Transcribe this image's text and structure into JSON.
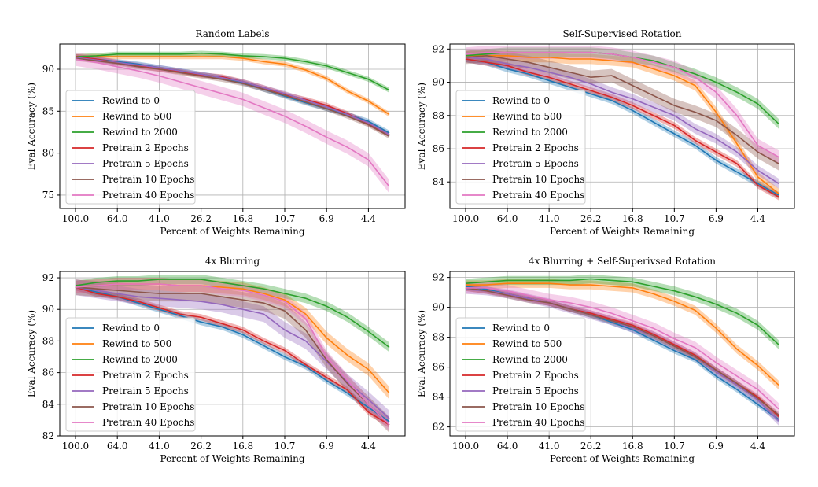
{
  "chart_data": [
    {
      "type": "line",
      "title": "Random Labels",
      "xlabel": "Percent of Weights Remaining",
      "ylabel": "Eval Accuracy (%)",
      "x_ticks": [
        "100.0",
        "64.0",
        "41.0",
        "26.2",
        "16.8",
        "10.7",
        "6.9",
        "4.4"
      ],
      "y_ticks": [
        75,
        80,
        85,
        90
      ],
      "ylim": [
        73.4,
        93.0
      ],
      "x": [
        100.0,
        80.0,
        64.0,
        51.2,
        41.0,
        32.8,
        26.2,
        21.0,
        16.8,
        13.4,
        10.7,
        8.6,
        6.9,
        5.5,
        4.4,
        3.5
      ],
      "legend_position": "lower-left",
      "grid": true,
      "series": [
        {
          "name": "Rewind to 0",
          "color": "#1f77b4",
          "band": 0.3,
          "values": [
            91.5,
            91.2,
            90.9,
            90.6,
            90.2,
            89.8,
            89.4,
            89.0,
            88.4,
            87.6,
            86.8,
            86.0,
            85.3,
            84.6,
            83.8,
            82.4
          ]
        },
        {
          "name": "Rewind to 500",
          "color": "#ff7f0e",
          "band": 0.3,
          "values": [
            91.5,
            91.5,
            91.5,
            91.5,
            91.5,
            91.5,
            91.5,
            91.5,
            91.3,
            90.9,
            90.6,
            89.9,
            88.9,
            87.4,
            86.2,
            84.6
          ]
        },
        {
          "name": "Rewind to 2000",
          "color": "#2ca02c",
          "band": 0.3,
          "values": [
            91.5,
            91.6,
            91.8,
            91.8,
            91.8,
            91.8,
            91.9,
            91.8,
            91.6,
            91.5,
            91.3,
            90.9,
            90.4,
            89.6,
            88.8,
            87.5
          ]
        },
        {
          "name": "Pretrain 2 Epochs",
          "color": "#d62728",
          "band": 0.3,
          "values": [
            91.5,
            91.2,
            90.8,
            90.4,
            90.0,
            89.7,
            89.3,
            89.1,
            88.5,
            87.8,
            87.0,
            86.4,
            85.7,
            84.7,
            83.5,
            82.2
          ]
        },
        {
          "name": "Pretrain 5 Epochs",
          "color": "#9467bd",
          "band": 0.3,
          "values": [
            91.4,
            91.1,
            90.8,
            90.5,
            90.2,
            89.8,
            89.4,
            89.0,
            88.5,
            87.8,
            87.1,
            86.3,
            85.5,
            84.6,
            83.6,
            82.2
          ]
        },
        {
          "name": "Pretrain 10 Epochs",
          "color": "#8c564b",
          "band": 0.3,
          "values": [
            91.3,
            91.0,
            90.7,
            90.3,
            90.0,
            89.6,
            89.2,
            88.8,
            88.3,
            87.6,
            86.9,
            86.1,
            85.3,
            84.4,
            83.4,
            82.0
          ]
        },
        {
          "name": "Pretrain 40 Epochs",
          "color": "#e377c2",
          "band": 0.8,
          "values": [
            91.2,
            90.8,
            90.3,
            89.8,
            89.2,
            88.5,
            87.8,
            87.1,
            86.4,
            85.4,
            84.4,
            83.2,
            81.9,
            80.7,
            79.2,
            76.0
          ]
        }
      ]
    },
    {
      "type": "line",
      "title": "Self-Supervised Rotation",
      "xlabel": "Percent of Weights Remaining",
      "ylabel": "Eval Accuracy (%)",
      "x_ticks": [
        "100.0",
        "64.0",
        "41.0",
        "26.2",
        "16.8",
        "10.7",
        "6.9",
        "4.4"
      ],
      "y_ticks": [
        84,
        86,
        88,
        90,
        92
      ],
      "ylim": [
        82.4,
        92.3
      ],
      "x": [
        100.0,
        80.0,
        64.0,
        51.2,
        41.0,
        32.8,
        26.2,
        21.0,
        16.8,
        13.4,
        10.7,
        8.6,
        6.9,
        5.5,
        4.4,
        3.5
      ],
      "legend_position": "lower-left",
      "grid": true,
      "series": [
        {
          "name": "Rewind to 0",
          "color": "#1f77b4",
          "band": 0.2,
          "values": [
            91.4,
            91.2,
            90.8,
            90.5,
            90.1,
            89.7,
            89.3,
            88.9,
            88.3,
            87.6,
            86.9,
            86.2,
            85.3,
            84.6,
            83.9,
            83.2
          ]
        },
        {
          "name": "Rewind to 500",
          "color": "#ff7f0e",
          "band": 0.3,
          "values": [
            91.6,
            91.6,
            91.6,
            91.5,
            91.5,
            91.4,
            91.4,
            91.3,
            91.2,
            90.8,
            90.4,
            89.8,
            88.2,
            86.3,
            84.3,
            83.3
          ]
        },
        {
          "name": "Rewind to 2000",
          "color": "#2ca02c",
          "band": 0.3,
          "values": [
            91.6,
            91.7,
            91.8,
            91.8,
            91.8,
            91.8,
            91.8,
            91.7,
            91.5,
            91.3,
            90.9,
            90.5,
            90.0,
            89.4,
            88.7,
            87.5
          ]
        },
        {
          "name": "Pretrain 2 Epochs",
          "color": "#d62728",
          "band": 0.2,
          "values": [
            91.4,
            91.2,
            91.0,
            90.6,
            90.3,
            89.9,
            89.5,
            89.1,
            88.6,
            88.0,
            87.4,
            86.5,
            85.8,
            85.1,
            83.8,
            83.1
          ]
        },
        {
          "name": "Pretrain 5 Epochs",
          "color": "#9467bd",
          "band": 0.3,
          "values": [
            91.5,
            91.4,
            91.1,
            90.9,
            90.6,
            90.3,
            89.9,
            89.4,
            89.0,
            88.5,
            88.0,
            87.2,
            86.6,
            85.8,
            84.7,
            83.9
          ]
        },
        {
          "name": "Pretrain 10 Epochs",
          "color": "#8c564b",
          "band": 0.4,
          "values": [
            91.5,
            91.6,
            91.4,
            91.2,
            90.9,
            90.6,
            90.3,
            90.4,
            89.8,
            89.2,
            88.6,
            88.2,
            87.7,
            86.8,
            85.8,
            85.1
          ]
        },
        {
          "name": "Pretrain 40 Epochs",
          "color": "#e377c2",
          "band": 0.4,
          "values": [
            91.7,
            91.8,
            91.8,
            91.8,
            91.8,
            91.8,
            91.8,
            91.7,
            91.5,
            91.2,
            90.9,
            90.3,
            89.4,
            88.0,
            86.2,
            85.5
          ]
        }
      ]
    },
    {
      "type": "line",
      "title": "4x Blurring",
      "xlabel": "Percent of Weights Remaining",
      "ylabel": "Eval Accuracy (%)",
      "x_ticks": [
        "100.0",
        "64.0",
        "41.0",
        "26.2",
        "16.8",
        "10.7",
        "6.9",
        "4.4"
      ],
      "y_ticks": [
        82,
        84,
        86,
        88,
        90,
        92
      ],
      "ylim": [
        82.0,
        92.4
      ],
      "x": [
        100.0,
        80.0,
        64.0,
        51.2,
        41.0,
        32.8,
        26.2,
        21.0,
        16.8,
        13.4,
        10.7,
        8.6,
        6.9,
        5.5,
        4.4,
        3.5
      ],
      "legend_position": "lower-left",
      "grid": true,
      "series": [
        {
          "name": "Rewind to 0",
          "color": "#1f77b4",
          "band": 0.2,
          "values": [
            91.4,
            91.1,
            90.8,
            90.4,
            90.0,
            89.6,
            89.2,
            88.9,
            88.4,
            87.7,
            87.0,
            86.4,
            85.5,
            84.7,
            83.8,
            82.9
          ]
        },
        {
          "name": "Rewind to 500",
          "color": "#ff7f0e",
          "band": 0.4,
          "values": [
            91.4,
            91.5,
            91.6,
            91.6,
            91.6,
            91.5,
            91.5,
            91.4,
            91.3,
            91.0,
            90.6,
            89.7,
            88.2,
            87.1,
            86.2,
            84.7
          ]
        },
        {
          "name": "Rewind to 2000",
          "color": "#2ca02c",
          "band": 0.3,
          "values": [
            91.5,
            91.7,
            91.8,
            91.8,
            91.9,
            91.9,
            91.9,
            91.7,
            91.5,
            91.3,
            91.0,
            90.7,
            90.2,
            89.5,
            88.6,
            87.6
          ]
        },
        {
          "name": "Pretrain 2 Epochs",
          "color": "#d62728",
          "band": 0.2,
          "values": [
            91.4,
            91.0,
            90.8,
            90.5,
            90.1,
            89.7,
            89.5,
            89.1,
            88.7,
            88.0,
            87.4,
            86.5,
            85.7,
            84.9,
            83.5,
            82.7
          ]
        },
        {
          "name": "Pretrain 5 Epochs",
          "color": "#9467bd",
          "band": 0.5,
          "values": [
            91.4,
            91.2,
            91.0,
            90.8,
            90.7,
            90.6,
            90.5,
            90.3,
            90.0,
            89.7,
            88.7,
            88.0,
            86.7,
            85.4,
            84.3,
            83.1
          ]
        },
        {
          "name": "Pretrain 10 Epochs",
          "color": "#8c564b",
          "band": 0.5,
          "values": [
            91.4,
            91.3,
            91.2,
            91.1,
            91.0,
            91.0,
            91.0,
            90.8,
            90.6,
            90.4,
            89.9,
            88.7,
            86.8,
            85.3,
            84.0,
            82.7
          ]
        },
        {
          "name": "Pretrain 40 Epochs",
          "color": "#e377c2",
          "band": 0.4,
          "values": [
            91.4,
            91.5,
            91.6,
            91.6,
            91.6,
            91.5,
            91.5,
            91.3,
            91.2,
            90.9,
            90.5,
            89.4,
            87.0,
            85.5,
            84.0,
            82.7
          ]
        }
      ]
    },
    {
      "type": "line",
      "title": "4x Blurring + Self-Superivsed Rotation",
      "xlabel": "Percent of Weights Remaining",
      "ylabel": "Eval Accuracy (%)",
      "x_ticks": [
        "100.0",
        "64.0",
        "41.0",
        "26.2",
        "16.8",
        "10.7",
        "6.9",
        "4.4"
      ],
      "y_ticks": [
        82,
        84,
        86,
        88,
        90,
        92
      ],
      "ylim": [
        81.4,
        92.4
      ],
      "x": [
        100.0,
        80.0,
        64.0,
        51.2,
        41.0,
        32.8,
        26.2,
        21.0,
        16.8,
        13.4,
        10.7,
        8.6,
        6.9,
        5.5,
        4.4,
        3.5
      ],
      "legend_position": "lower-left",
      "grid": true,
      "series": [
        {
          "name": "Rewind to 0",
          "color": "#1f77b4",
          "band": 0.2,
          "values": [
            91.4,
            91.2,
            90.9,
            90.6,
            90.3,
            89.9,
            89.5,
            89.0,
            88.5,
            87.8,
            87.1,
            86.5,
            85.4,
            84.5,
            83.5,
            82.5
          ]
        },
        {
          "name": "Rewind to 500",
          "color": "#ff7f0e",
          "band": 0.3,
          "values": [
            91.5,
            91.5,
            91.6,
            91.6,
            91.6,
            91.5,
            91.5,
            91.4,
            91.3,
            90.9,
            90.4,
            89.8,
            88.6,
            87.2,
            86.1,
            84.8
          ]
        },
        {
          "name": "Rewind to 2000",
          "color": "#2ca02c",
          "band": 0.3,
          "values": [
            91.6,
            91.7,
            91.8,
            91.8,
            91.8,
            91.8,
            91.9,
            91.8,
            91.7,
            91.4,
            91.1,
            90.7,
            90.2,
            89.6,
            88.8,
            87.5
          ]
        },
        {
          "name": "Pretrain 2 Epochs",
          "color": "#d62728",
          "band": 0.2,
          "values": [
            91.3,
            91.1,
            90.9,
            90.6,
            90.3,
            89.9,
            89.6,
            89.2,
            88.8,
            88.2,
            87.5,
            86.8,
            85.8,
            84.9,
            84.0,
            82.7
          ]
        },
        {
          "name": "Pretrain 5 Epochs",
          "color": "#9467bd",
          "band": 0.3,
          "values": [
            91.2,
            91.1,
            90.9,
            90.6,
            90.3,
            89.9,
            89.5,
            89.1,
            88.6,
            88.1,
            87.4,
            86.7,
            85.7,
            84.8,
            83.8,
            82.4
          ]
        },
        {
          "name": "Pretrain 10 Epochs",
          "color": "#8c564b",
          "band": 0.2,
          "values": [
            91.3,
            91.1,
            90.8,
            90.5,
            90.3,
            89.9,
            89.5,
            89.1,
            88.7,
            88.1,
            87.4,
            86.7,
            85.8,
            84.9,
            83.9,
            82.8
          ]
        },
        {
          "name": "Pretrain 40 Epochs",
          "color": "#e377c2",
          "band": 0.4,
          "values": [
            91.3,
            91.3,
            91.1,
            90.8,
            90.5,
            90.3,
            90.0,
            89.6,
            89.1,
            88.6,
            87.9,
            87.3,
            86.3,
            85.4,
            84.5,
            83.2
          ]
        }
      ]
    }
  ]
}
